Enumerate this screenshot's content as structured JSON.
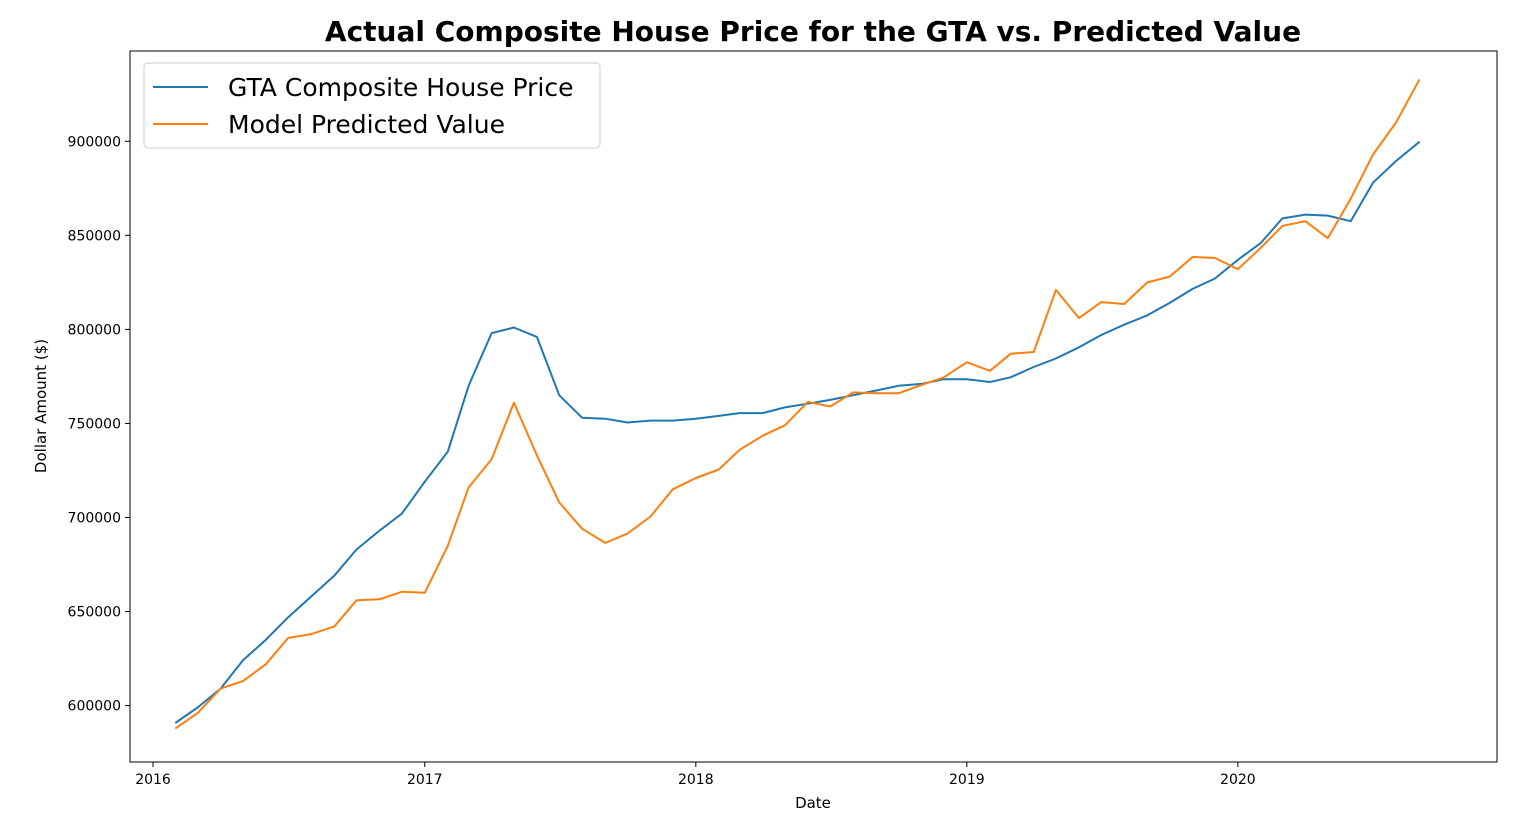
{
  "chart_data": {
    "type": "line",
    "title": "Actual Composite House Price for the GTA vs. Predicted Value",
    "xlabel": "Date",
    "ylabel": "Dollar Amount ($)",
    "x_ticks": [
      "2016",
      "2017",
      "2018",
      "2019",
      "2020"
    ],
    "y_ticks": [
      600000,
      650000,
      700000,
      750000,
      800000,
      850000,
      900000
    ],
    "xlim": [
      "2015-12-01",
      "2020-12-15"
    ],
    "ylim": [
      570000,
      948000
    ],
    "grid": false,
    "legend_position": "top-left",
    "x": [
      "2016-02",
      "2016-03",
      "2016-04",
      "2016-05",
      "2016-06",
      "2016-07",
      "2016-08",
      "2016-09",
      "2016-10",
      "2016-11",
      "2016-12",
      "2017-01",
      "2017-02",
      "2017-03",
      "2017-04",
      "2017-05",
      "2017-06",
      "2017-07",
      "2017-08",
      "2017-09",
      "2017-10",
      "2017-11",
      "2017-12",
      "2018-01",
      "2018-02",
      "2018-03",
      "2018-04",
      "2018-05",
      "2018-06",
      "2018-07",
      "2018-08",
      "2018-09",
      "2018-10",
      "2018-11",
      "2018-12",
      "2019-01",
      "2019-02",
      "2019-03",
      "2019-04",
      "2019-05",
      "2019-06",
      "2019-07",
      "2019-08",
      "2019-09",
      "2019-10",
      "2019-11",
      "2019-12",
      "2020-01",
      "2020-02",
      "2020-03",
      "2020-04",
      "2020-05",
      "2020-06",
      "2020-07",
      "2020-08",
      "2020-09"
    ],
    "series": [
      {
        "name": "GTA Composite House Price",
        "color": "#1f77b4",
        "values": [
          591000,
          599000,
          609000,
          624000,
          635000,
          647000,
          658000,
          669000,
          683000,
          693000,
          702000,
          719000,
          735000,
          770000,
          798000,
          801000,
          796000,
          765000,
          753000,
          752500,
          750500,
          751500,
          751500,
          752500,
          754000,
          755500,
          755500,
          758500,
          760500,
          762500,
          765000,
          767500,
          770000,
          771000,
          773500,
          773500,
          772000,
          774500,
          780000,
          784500,
          790500,
          797000,
          802500,
          807500,
          814000,
          821500,
          827000,
          837000,
          846000,
          859000,
          861000,
          860500,
          857500,
          878000,
          889500,
          899500
        ]
      },
      {
        "name": "Model Predicted Value",
        "color": "#ff7f0e",
        "values": [
          588000,
          596000,
          609000,
          613000,
          622000,
          636000,
          638000,
          642000,
          656000,
          656500,
          660500,
          660000,
          685000,
          716000,
          731000,
          761000,
          733000,
          708000,
          694000,
          686500,
          691500,
          700500,
          715000,
          721000,
          725500,
          736000,
          743500,
          749000,
          761500,
          759000,
          766500,
          766000,
          766000,
          770500,
          774500,
          782500,
          778000,
          787000,
          788000,
          821000,
          806000,
          814500,
          813500,
          825000,
          828000,
          838500,
          838000,
          832000,
          843500,
          855000,
          857500,
          848500,
          869500,
          893000,
          910000,
          932500
        ]
      }
    ]
  }
}
